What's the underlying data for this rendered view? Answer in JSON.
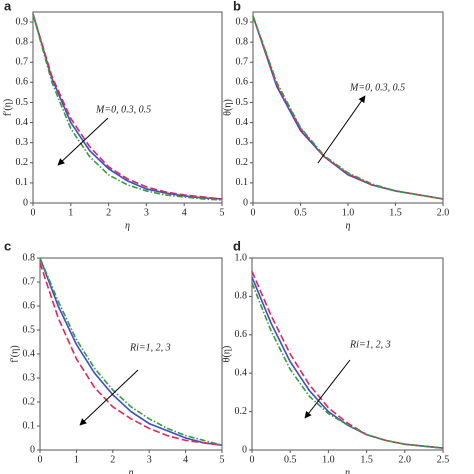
{
  "chart_data": [
    {
      "type": "line",
      "panel": "a",
      "xlabel": "η",
      "ylabel": "f′(η)",
      "x": [
        0,
        0.5,
        1,
        1.5,
        2,
        2.5,
        3,
        3.5,
        4,
        4.5,
        5
      ],
      "series": [
        {
          "color": "#3b4fc8",
          "linestyle": "solid",
          "values": [
            0.94,
            0.62,
            0.4,
            0.26,
            0.17,
            0.11,
            0.07,
            0.05,
            0.035,
            0.025,
            0.02
          ]
        },
        {
          "color": "#e0265a",
          "linestyle": "dashed",
          "values": [
            0.94,
            0.63,
            0.42,
            0.28,
            0.18,
            0.12,
            0.08,
            0.055,
            0.04,
            0.03,
            0.02
          ]
        },
        {
          "color": "#3a9a3a",
          "linestyle": "dashdot",
          "values": [
            0.94,
            0.6,
            0.37,
            0.23,
            0.14,
            0.09,
            0.06,
            0.04,
            0.03,
            0.02,
            0.015
          ]
        }
      ],
      "xlim": [
        0,
        5
      ],
      "ylim": [
        0,
        0.95
      ],
      "xticks": [
        0,
        1,
        2,
        3,
        4,
        5
      ],
      "yticks": [
        0,
        0.1,
        0.2,
        0.3,
        0.4,
        0.5,
        0.6,
        0.7,
        0.8,
        0.9
      ],
      "annotation": "M=0, 0.3, 0.5"
    },
    {
      "type": "line",
      "panel": "b",
      "xlabel": "η",
      "ylabel": "θ(η)",
      "x": [
        0,
        0.25,
        0.5,
        0.75,
        1,
        1.25,
        1.5,
        1.75,
        2
      ],
      "series": [
        {
          "color": "#3b4fc8",
          "linestyle": "solid",
          "values": [
            0.93,
            0.58,
            0.36,
            0.23,
            0.14,
            0.09,
            0.06,
            0.04,
            0.02
          ]
        },
        {
          "color": "#e0265a",
          "linestyle": "dashed",
          "values": [
            0.93,
            0.59,
            0.37,
            0.23,
            0.145,
            0.09,
            0.06,
            0.04,
            0.02
          ]
        },
        {
          "color": "#3a9a3a",
          "linestyle": "dashdot",
          "values": [
            0.93,
            0.6,
            0.375,
            0.235,
            0.15,
            0.095,
            0.06,
            0.04,
            0.02
          ]
        }
      ],
      "xlim": [
        0,
        2
      ],
      "ylim": [
        0,
        0.95
      ],
      "xticks": [
        0,
        0.5,
        {
          "value": 1,
          "label": "1.0"
        },
        1.5,
        {
          "value": 2,
          "label": "2.0"
        }
      ],
      "yticks": [
        0,
        0.1,
        0.2,
        0.3,
        0.4,
        0.5,
        0.6,
        0.7,
        0.8,
        0.9
      ],
      "annotation": "M=0, 0.3, 0.5"
    },
    {
      "type": "line",
      "panel": "c",
      "xlabel": "η",
      "ylabel": "f′(η)",
      "x": [
        0,
        0.5,
        1,
        1.5,
        2,
        2.5,
        3,
        3.5,
        4,
        4.5,
        5
      ],
      "series": [
        {
          "color": "#3b4fc8",
          "linestyle": "solid",
          "values": [
            0.8,
            0.6,
            0.44,
            0.32,
            0.23,
            0.16,
            0.11,
            0.08,
            0.05,
            0.03,
            0.02
          ]
        },
        {
          "color": "#e0265a",
          "linestyle": "dashed",
          "values": [
            0.78,
            0.55,
            0.38,
            0.26,
            0.18,
            0.13,
            0.09,
            0.06,
            0.04,
            0.03,
            0.02
          ]
        },
        {
          "color": "#3a9a3a",
          "linestyle": "dashdot",
          "values": [
            0.8,
            0.62,
            0.46,
            0.34,
            0.25,
            0.18,
            0.13,
            0.09,
            0.06,
            0.04,
            0.02
          ]
        }
      ],
      "xlim": [
        0,
        5
      ],
      "ylim": [
        0,
        0.8
      ],
      "xticks": [
        0,
        1,
        2,
        3,
        4,
        5
      ],
      "yticks": [
        0,
        0.1,
        0.2,
        0.3,
        0.4,
        0.5,
        0.6,
        0.7,
        0.8
      ],
      "annotation": "Ri=1, 2, 3"
    },
    {
      "type": "line",
      "panel": "d",
      "xlabel": "η",
      "ylabel": "θ(η)",
      "x": [
        0,
        0.25,
        0.5,
        0.75,
        1,
        1.25,
        1.5,
        1.75,
        2,
        2.25,
        2.5
      ],
      "series": [
        {
          "color": "#3b4fc8",
          "linestyle": "solid",
          "values": [
            0.9,
            0.66,
            0.46,
            0.31,
            0.2,
            0.13,
            0.08,
            0.05,
            0.03,
            0.02,
            0.01
          ]
        },
        {
          "color": "#e0265a",
          "linestyle": "dashed",
          "values": [
            0.93,
            0.7,
            0.5,
            0.34,
            0.22,
            0.14,
            0.08,
            0.05,
            0.03,
            0.02,
            0.01
          ]
        },
        {
          "color": "#3a9a3a",
          "linestyle": "dashdot",
          "values": [
            0.87,
            0.62,
            0.42,
            0.28,
            0.19,
            0.13,
            0.08,
            0.05,
            0.03,
            0.02,
            0.01
          ]
        }
      ],
      "xlim": [
        0,
        2.5
      ],
      "ylim": [
        0,
        1
      ],
      "xticks": [
        0,
        0.5,
        {
          "value": 1,
          "label": "1.0"
        },
        1.5,
        {
          "value": 2,
          "label": "2.0"
        },
        2.5
      ],
      "yticks": [
        0,
        0.2,
        0.4,
        0.6,
        0.8,
        {
          "value": 1,
          "label": "1.0"
        }
      ],
      "annotation": "Ri=1, 2, 3"
    }
  ]
}
